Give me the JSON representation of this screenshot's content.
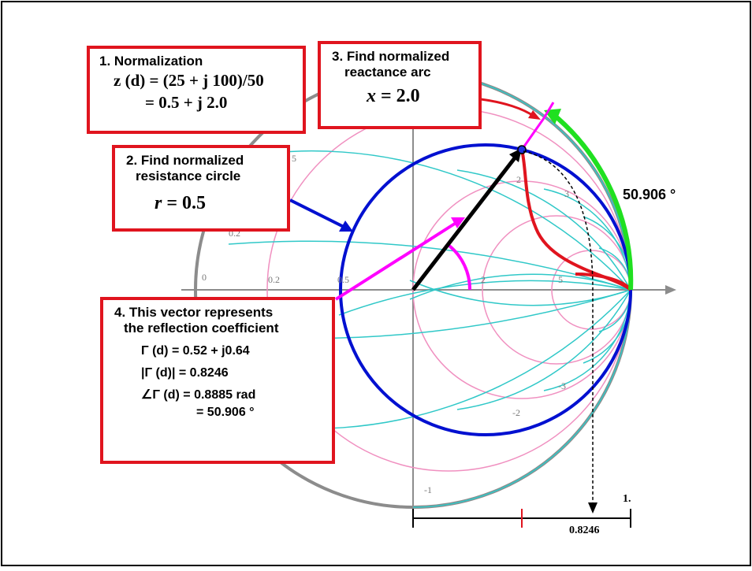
{
  "box1": {
    "title": "1. Normalization",
    "line1": "z (d) = (25 + j 100)/50",
    "line2": "= 0.5 + j 2.0"
  },
  "box2": {
    "title1": "2. Find normalized",
    "title2": "resistance circle",
    "eq_var": "r",
    "eq_rest": " = 0.5"
  },
  "box3": {
    "title1": "3. Find normalized",
    "title2": "reactance arc",
    "eq_var": "x",
    "eq_rest": " = 2.0"
  },
  "box4": {
    "title1": "4. This vector represents",
    "title2": "the reflection coefficient",
    "line1": "Γ (d) = 0.52 + j0.64",
    "line2": "|Γ (d)| = 0.8246",
    "line3": "∠Γ (d) = 0.8885 rad",
    "line4": "= 50.906 °"
  },
  "angle_label": "50.906 °",
  "magnitude_label": "0.8246",
  "scale_end_label": "1.",
  "chart_labels": {
    "r0": "0",
    "r02": "0.2",
    "r05": "0.5",
    "r2": "2",
    "r5": "5",
    "x02": "0.2",
    "x05": "5",
    "x2": "2",
    "x3": "3",
    "xm1": "-1",
    "xm2": "-2",
    "xm3": "-3"
  },
  "colors": {
    "box_border": "#e0141e",
    "resistance_circle": "#0010d0",
    "reactance_arc": "#e0141e",
    "gamma_vector": "#000000",
    "axis_vector": "#ff00ff",
    "angle_arc": "#20e020",
    "grid_resistance": "#f090c0",
    "grid_reactance": "#30c8c8"
  }
}
